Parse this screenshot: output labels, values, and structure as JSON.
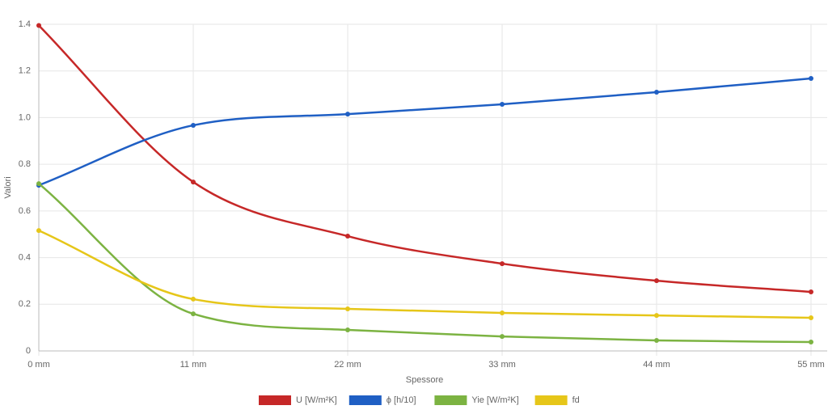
{
  "chart_data": {
    "type": "line",
    "x_label": "Spessore",
    "y_label": "Valori",
    "categories": [
      "0 mm",
      "11 mm",
      "22 mm",
      "33 mm",
      "44 mm",
      "55 mm"
    ],
    "series": [
      {
        "name": "U [W/m²K]",
        "color": "#c62828",
        "values": [
          1.395,
          0.724,
          0.492,
          0.374,
          0.301,
          0.253
        ]
      },
      {
        "name": "ϕ [h/10]",
        "color": "#1f5fc4",
        "values": [
          0.71,
          0.967,
          1.015,
          1.057,
          1.109,
          1.168
        ]
      },
      {
        "name": "Yie [W/m²K]",
        "color": "#7cb342",
        "values": [
          0.717,
          0.159,
          0.09,
          0.062,
          0.045,
          0.038
        ]
      },
      {
        "name": "fd",
        "color": "#e6c619",
        "values": [
          0.516,
          0.222,
          0.18,
          0.163,
          0.152,
          0.142
        ]
      }
    ],
    "ylim": [
      0,
      1.4
    ],
    "yticks": [
      0,
      0.2,
      0.4,
      0.6,
      0.8,
      {
        "value": 1,
        "label": "1.0"
      },
      1.2,
      1.4
    ],
    "grid": true,
    "legend": "bottom"
  }
}
